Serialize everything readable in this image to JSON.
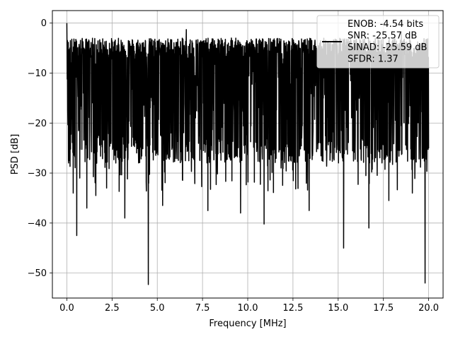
{
  "chart_data": {
    "type": "line",
    "title": "",
    "xlabel": "Frequency [MHz]",
    "ylabel": "PSD [dB]",
    "xlim": [
      -0.8,
      20.8
    ],
    "ylim": [
      -55,
      2.5
    ],
    "grid": true,
    "legend_placement": "top-right",
    "xticks": [
      0.0,
      2.5,
      5.0,
      7.5,
      10.0,
      12.5,
      15.0,
      17.5,
      20.0
    ],
    "xtick_labels": [
      "0.0",
      "2.5",
      "5.0",
      "7.5",
      "10.0",
      "12.5",
      "15.0",
      "17.5",
      "20.0"
    ],
    "yticks": [
      0,
      -10,
      -20,
      -30,
      -40,
      -50
    ],
    "ytick_labels": [
      "0",
      "−10",
      "−20",
      "−30",
      "−40",
      "−50"
    ],
    "series": [
      {
        "name": "ENOB: -4.54 bits",
        "color": "#000000",
        "x_start": 0.0,
        "x_end": 20.0,
        "n_points": 2048,
        "noise_band_db": [
          -24,
          -5
        ],
        "peak": {
          "x": 0.0,
          "y": 0.0
        },
        "notable_dips": [
          {
            "x": 0.1,
            "y": -28.0
          },
          {
            "x": 0.35,
            "y": -34.0
          },
          {
            "x": 0.55,
            "y": -42.5
          },
          {
            "x": 1.1,
            "y": -37.0
          },
          {
            "x": 1.6,
            "y": -34.5
          },
          {
            "x": 2.2,
            "y": -33.0
          },
          {
            "x": 3.2,
            "y": -39.0
          },
          {
            "x": 4.5,
            "y": -52.3
          },
          {
            "x": 5.3,
            "y": -36.5
          },
          {
            "x": 6.6,
            "y": -34.0
          },
          {
            "x": 7.8,
            "y": -37.5
          },
          {
            "x": 9.6,
            "y": -38.0
          },
          {
            "x": 10.9,
            "y": -40.2
          },
          {
            "x": 13.4,
            "y": -35.0
          },
          {
            "x": 13.4,
            "y": -37.5
          },
          {
            "x": 15.3,
            "y": -45.0
          },
          {
            "x": 16.7,
            "y": -41.0
          },
          {
            "x": 17.8,
            "y": -35.5
          },
          {
            "x": 19.1,
            "y": -34.0
          },
          {
            "x": 19.8,
            "y": -52.0
          }
        ],
        "notable_peaks": [
          {
            "x": 3.4,
            "y": -3.5
          },
          {
            "x": 6.6,
            "y": -1.3
          },
          {
            "x": 9.1,
            "y": -3.0
          },
          {
            "x": 15.4,
            "y": -4.5
          },
          {
            "x": 18.5,
            "y": -2.0
          }
        ]
      }
    ],
    "legend": {
      "label": "ENOB: -4.54 bits\nSNR: -25.57 dB\nSINAD: -25.59 dB\nSFDR: 1.37",
      "lines": [
        "ENOB: -4.54 bits",
        "SNR: -25.57 dB",
        "SINAD: -25.59 dB",
        "SFDR: 1.37"
      ]
    }
  }
}
